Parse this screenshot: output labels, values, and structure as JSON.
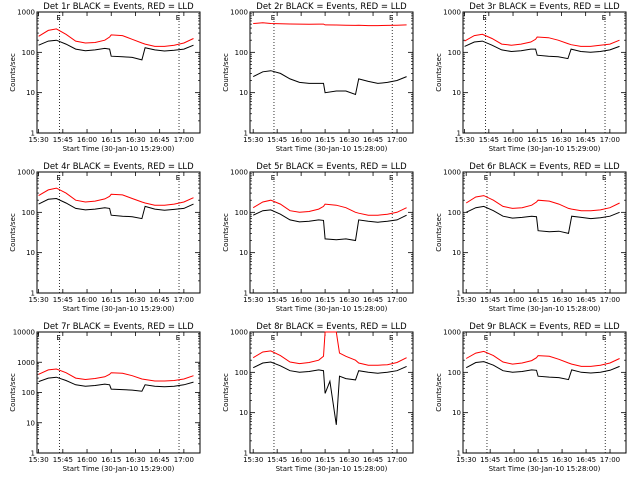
{
  "figure": {
    "background": "#ffffff"
  },
  "colors": {
    "events": "#000000",
    "lld": "#ff0000",
    "axes": "#000000"
  },
  "chart_data": [
    {
      "type": "line",
      "title": "Det 1r BLACK = Events, RED = LLD",
      "xlabel": "Start Time (30-Jan-10 15:29:00)",
      "ylabel": "Counts/sec",
      "xlim": [
        "15:29",
        "17:10"
      ],
      "ylim": [
        1,
        1000
      ],
      "yscale": "log",
      "x_ticks": [
        "15:30",
        "15:45",
        "16:00",
        "16:15",
        "16:30",
        "16:45",
        "17:00"
      ],
      "y_ticks": [
        "1",
        "10",
        "100",
        "1000"
      ],
      "markers": {
        "dotted_lines": [
          "15:43",
          "16:57"
        ],
        "label": "E"
      },
      "x": [
        "15:30",
        "15:36",
        "15:41",
        "15:47",
        "15:53",
        "15:59",
        "16:05",
        "16:11",
        "16:14",
        "16:15",
        "16:22",
        "16:28",
        "16:34",
        "16:36",
        "16:42",
        "16:48",
        "16:54",
        "17:00",
        "17:06"
      ],
      "series": [
        {
          "name": "Events",
          "color": "#000000",
          "values": [
            150,
            190,
            200,
            160,
            120,
            110,
            115,
            125,
            120,
            80,
            78,
            75,
            65,
            130,
            115,
            108,
            112,
            120,
            150
          ]
        },
        {
          "name": "LLD",
          "color": "#ff0000",
          "values": [
            250,
            350,
            380,
            280,
            190,
            170,
            175,
            200,
            240,
            270,
            260,
            210,
            170,
            160,
            140,
            140,
            150,
            170,
            220
          ]
        }
      ]
    },
    {
      "type": "line",
      "title": "Det 2r BLACK = Events, RED = LLD",
      "xlabel": "Start Time (30-Jan-10 15:28:00)",
      "ylabel": "Counts/sec",
      "xlim": [
        "15:28",
        "17:10"
      ],
      "ylim": [
        1,
        1000
      ],
      "yscale": "log",
      "x_ticks": [
        "15:30",
        "15:45",
        "16:00",
        "16:15",
        "16:30",
        "16:45",
        "17:00"
      ],
      "y_ticks": [
        "1",
        "10",
        "100",
        "1000"
      ],
      "markers": {
        "dotted_lines": [
          "15:43",
          "16:57"
        ],
        "label": "E"
      },
      "x": [
        "15:30",
        "15:36",
        "15:41",
        "15:47",
        "15:53",
        "15:59",
        "16:05",
        "16:11",
        "16:14",
        "16:15",
        "16:22",
        "16:28",
        "16:34",
        "16:36",
        "16:42",
        "16:48",
        "16:54",
        "17:00",
        "17:06"
      ],
      "series": [
        {
          "name": "Events",
          "color": "#000000",
          "values": [
            25,
            33,
            35,
            30,
            22,
            18,
            17,
            17,
            17,
            10,
            11,
            11,
            9,
            22,
            19,
            17,
            18,
            20,
            25
          ]
        },
        {
          "name": "LLD",
          "color": "#ff0000",
          "values": [
            520,
            540,
            520,
            510,
            505,
            500,
            495,
            500,
            500,
            480,
            475,
            470,
            465,
            470,
            460,
            460,
            465,
            470,
            480
          ]
        }
      ]
    },
    {
      "type": "line",
      "title": "Det 3r BLACK = Events, RED = LLD",
      "xlabel": "Start Time (30-Jan-10 15:29:00)",
      "ylabel": "Counts/sec",
      "xlim": [
        "15:29",
        "17:10"
      ],
      "ylim": [
        1,
        1000
      ],
      "yscale": "log",
      "x_ticks": [
        "15:30",
        "15:45",
        "16:00",
        "16:15",
        "16:30",
        "16:45",
        "17:00"
      ],
      "y_ticks": [
        "1",
        "10",
        "100",
        "1000"
      ],
      "markers": {
        "dotted_lines": [
          "15:43",
          "16:57"
        ],
        "label": "E"
      },
      "x": [
        "15:30",
        "15:36",
        "15:41",
        "15:47",
        "15:53",
        "15:59",
        "16:05",
        "16:11",
        "16:14",
        "16:15",
        "16:22",
        "16:28",
        "16:34",
        "16:36",
        "16:42",
        "16:48",
        "16:54",
        "17:00",
        "17:06"
      ],
      "series": [
        {
          "name": "Events",
          "color": "#000000",
          "values": [
            140,
            180,
            190,
            150,
            115,
            105,
            110,
            120,
            120,
            85,
            80,
            78,
            70,
            120,
            105,
            100,
            105,
            115,
            140
          ]
        },
        {
          "name": "LLD",
          "color": "#ff0000",
          "values": [
            190,
            260,
            280,
            220,
            160,
            150,
            160,
            180,
            210,
            240,
            230,
            200,
            165,
            155,
            140,
            140,
            150,
            160,
            200
          ]
        }
      ]
    },
    {
      "type": "line",
      "title": "Det 4r BLACK = Events, RED = LLD",
      "xlabel": "Start Time (30-Jan-10 15:29:00)",
      "ylabel": "Counts/sec",
      "xlim": [
        "15:29",
        "17:10"
      ],
      "ylim": [
        1,
        1000
      ],
      "yscale": "log",
      "x_ticks": [
        "15:30",
        "15:45",
        "16:00",
        "16:15",
        "16:30",
        "16:45",
        "17:00"
      ],
      "y_ticks": [
        "1",
        "10",
        "100",
        "1000"
      ],
      "markers": {
        "dotted_lines": [
          "15:43",
          "16:57"
        ],
        "label": "E"
      },
      "x": [
        "15:30",
        "15:36",
        "15:41",
        "15:47",
        "15:53",
        "15:59",
        "16:05",
        "16:11",
        "16:14",
        "16:15",
        "16:22",
        "16:28",
        "16:34",
        "16:36",
        "16:42",
        "16:48",
        "16:54",
        "17:00",
        "17:06"
      ],
      "series": [
        {
          "name": "Events",
          "color": "#000000",
          "values": [
            160,
            210,
            220,
            170,
            125,
            115,
            120,
            130,
            125,
            85,
            80,
            78,
            70,
            140,
            120,
            112,
            118,
            125,
            160
          ]
        },
        {
          "name": "LLD",
          "color": "#ff0000",
          "values": [
            260,
            360,
            400,
            300,
            200,
            180,
            190,
            215,
            250,
            280,
            270,
            220,
            180,
            170,
            150,
            150,
            160,
            180,
            230
          ]
        }
      ]
    },
    {
      "type": "line",
      "title": "Det 5r BLACK = Events, RED = LLD",
      "xlabel": "Start Time (30-Jan-10 15:28:00)",
      "ylabel": "Counts/sec",
      "xlim": [
        "15:28",
        "17:10"
      ],
      "ylim": [
        1,
        1000
      ],
      "yscale": "log",
      "x_ticks": [
        "15:30",
        "15:45",
        "16:00",
        "16:15",
        "16:30",
        "16:45",
        "17:00"
      ],
      "y_ticks": [
        "1",
        "10",
        "100",
        "1000"
      ],
      "markers": {
        "dotted_lines": [
          "15:43",
          "16:57"
        ],
        "label": "E"
      },
      "x": [
        "15:30",
        "15:36",
        "15:41",
        "15:47",
        "15:53",
        "15:59",
        "16:05",
        "16:11",
        "16:14",
        "16:15",
        "16:22",
        "16:28",
        "16:34",
        "16:36",
        "16:42",
        "16:48",
        "16:54",
        "17:00",
        "17:06"
      ],
      "series": [
        {
          "name": "Events",
          "color": "#000000",
          "values": [
            85,
            110,
            115,
            90,
            65,
            58,
            60,
            65,
            63,
            22,
            21,
            22,
            20,
            65,
            60,
            57,
            60,
            65,
            85
          ]
        },
        {
          "name": "LLD",
          "color": "#ff0000",
          "values": [
            130,
            180,
            200,
            160,
            110,
            100,
            105,
            120,
            140,
            160,
            150,
            130,
            100,
            95,
            85,
            85,
            90,
            100,
            130
          ]
        }
      ]
    },
    {
      "type": "line",
      "title": "Det 6r BLACK = Events, RED = LLD",
      "xlabel": "Start Time (30-Jan-10 15:28:00)",
      "ylabel": "Counts/sec",
      "xlim": [
        "15:28",
        "17:10"
      ],
      "ylim": [
        1,
        1000
      ],
      "yscale": "log",
      "x_ticks": [
        "15:30",
        "15:45",
        "16:00",
        "16:15",
        "16:30",
        "16:45",
        "17:00"
      ],
      "y_ticks": [
        "1",
        "10",
        "100",
        "1000"
      ],
      "markers": {
        "dotted_lines": [
          "15:43",
          "16:57"
        ],
        "label": "E"
      },
      "x": [
        "15:30",
        "15:36",
        "15:41",
        "15:47",
        "15:53",
        "15:59",
        "16:05",
        "16:11",
        "16:14",
        "16:15",
        "16:22",
        "16:28",
        "16:34",
        "16:36",
        "16:42",
        "16:48",
        "16:54",
        "17:00",
        "17:06"
      ],
      "series": [
        {
          "name": "Events",
          "color": "#000000",
          "values": [
            100,
            130,
            140,
            110,
            80,
            72,
            75,
            80,
            78,
            35,
            33,
            34,
            30,
            80,
            75,
            70,
            73,
            80,
            100
          ]
        },
        {
          "name": "LLD",
          "color": "#ff0000",
          "values": [
            170,
            240,
            260,
            200,
            140,
            125,
            130,
            150,
            180,
            200,
            190,
            160,
            125,
            120,
            110,
            110,
            115,
            130,
            170
          ]
        }
      ]
    },
    {
      "type": "line",
      "title": "Det 7r BLACK = Events, RED = LLD",
      "xlabel": "Start Time (30-Jan-10 15:29:00)",
      "ylabel": "Counts/sec",
      "xlim": [
        "15:29",
        "17:10"
      ],
      "ylim": [
        1,
        10000
      ],
      "yscale": "log",
      "x_ticks": [
        "15:30",
        "15:45",
        "16:00",
        "16:15",
        "16:30",
        "16:45",
        "17:00"
      ],
      "y_ticks": [
        "1",
        "10",
        "100",
        "1000",
        "10000"
      ],
      "markers": {
        "dotted_lines": [
          "15:43",
          "16:57"
        ],
        "label": "E"
      },
      "x": [
        "15:30",
        "15:36",
        "15:41",
        "15:47",
        "15:53",
        "15:59",
        "16:05",
        "16:11",
        "16:14",
        "16:15",
        "16:22",
        "16:28",
        "16:34",
        "16:36",
        "16:42",
        "16:48",
        "16:54",
        "17:00",
        "17:06"
      ],
      "series": [
        {
          "name": "Events",
          "color": "#000000",
          "values": [
            230,
            300,
            320,
            250,
            180,
            160,
            170,
            190,
            180,
            130,
            125,
            120,
            110,
            180,
            160,
            155,
            160,
            180,
            220
          ]
        },
        {
          "name": "LLD",
          "color": "#ff0000",
          "values": [
            400,
            560,
            600,
            450,
            300,
            270,
            290,
            330,
            400,
            450,
            430,
            360,
            280,
            270,
            240,
            240,
            250,
            280,
            360
          ]
        }
      ]
    },
    {
      "type": "line",
      "title": "Det 8r BLACK = Events, RED = LLD",
      "xlabel": "Start Time (30-Jan-10 15:28:00)",
      "ylabel": "Counts/sec",
      "xlim": [
        "15:28",
        "17:10"
      ],
      "ylim": [
        1,
        1000
      ],
      "yscale": "log",
      "x_ticks": [
        "15:30",
        "15:45",
        "16:00",
        "16:15",
        "16:30",
        "16:45",
        "17:00"
      ],
      "y_ticks": [
        "1",
        "10",
        "100",
        "1000"
      ],
      "markers": {
        "dotted_lines": [
          "15:43",
          "16:57"
        ],
        "label": "E"
      },
      "x": [
        "15:30",
        "15:36",
        "15:41",
        "15:47",
        "15:53",
        "15:59",
        "16:05",
        "16:11",
        "16:14",
        "16:15",
        "16:18",
        "16:22",
        "16:24",
        "16:28",
        "16:34",
        "16:36",
        "16:42",
        "16:48",
        "16:54",
        "17:00",
        "17:06"
      ],
      "series": [
        {
          "name": "Events",
          "color": "#000000",
          "values": [
            130,
            170,
            180,
            145,
            110,
            100,
            105,
            115,
            110,
            30,
            60,
            5,
            80,
            70,
            65,
            110,
            100,
            95,
            100,
            110,
            140
          ]
        },
        {
          "name": "LLD",
          "color": "#ff0000",
          "values": [
            230,
            320,
            340,
            260,
            180,
            165,
            175,
            200,
            250,
            1000,
            1000,
            1000,
            300,
            250,
            200,
            170,
            150,
            150,
            155,
            175,
            230
          ]
        }
      ]
    },
    {
      "type": "line",
      "title": "Det 9r BLACK = Events, RED = LLD",
      "xlabel": "Start Time (30-Jan-10 15:28:00)",
      "ylabel": "Counts/sec",
      "xlim": [
        "15:28",
        "17:10"
      ],
      "ylim": [
        1,
        1000
      ],
      "yscale": "log",
      "x_ticks": [
        "15:30",
        "15:45",
        "16:00",
        "16:15",
        "16:30",
        "16:45",
        "17:00"
      ],
      "y_ticks": [
        "1",
        "10",
        "100",
        "1000"
      ],
      "markers": {
        "dotted_lines": [
          "15:43",
          "16:57"
        ],
        "label": "E"
      },
      "x": [
        "15:30",
        "15:36",
        "15:41",
        "15:47",
        "15:53",
        "15:59",
        "16:05",
        "16:11",
        "16:14",
        "16:15",
        "16:22",
        "16:28",
        "16:34",
        "16:36",
        "16:42",
        "16:48",
        "16:54",
        "17:00",
        "17:06"
      ],
      "series": [
        {
          "name": "Events",
          "color": "#000000",
          "values": [
            130,
            175,
            185,
            150,
            110,
            100,
            105,
            115,
            112,
            80,
            76,
            74,
            66,
            115,
            100,
            96,
            100,
            112,
            140
          ]
        },
        {
          "name": "LLD",
          "color": "#ff0000",
          "values": [
            220,
            300,
            330,
            260,
            180,
            160,
            170,
            195,
            230,
            260,
            250,
            210,
            170,
            160,
            140,
            140,
            150,
            170,
            220
          ]
        }
      ]
    }
  ]
}
